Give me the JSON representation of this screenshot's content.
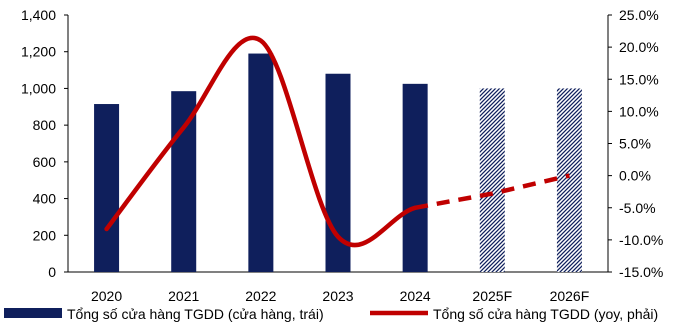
{
  "chart_data": {
    "type": "bar",
    "categories": [
      "2020",
      "2021",
      "2022",
      "2023",
      "2024",
      "2025F",
      "2026F"
    ],
    "series": [
      {
        "name": "Tổng số cửa hàng TGDD (cửa hàng, trái)",
        "type": "bar",
        "axis": "left",
        "values": [
          915,
          985,
          1190,
          1080,
          1025,
          1000,
          1000
        ],
        "forecast_from_index": 5,
        "color": "#0f1f5c"
      },
      {
        "name": "Tổng số cửa hàng TGDD (yoy, phải)",
        "type": "line",
        "axis": "right",
        "values": [
          -8.3,
          7.5,
          21.0,
          -9.5,
          -5.0,
          -2.8,
          0.0
        ],
        "forecast_from_index": 4,
        "color": "#c00000"
      }
    ],
    "left_axis": {
      "ylim": [
        0,
        1400
      ],
      "ticks": [
        0,
        200,
        400,
        600,
        800,
        1000,
        1200,
        1400
      ],
      "tick_labels": [
        "0",
        "200",
        "400",
        "600",
        "800",
        "1,000",
        "1,200",
        "1,400"
      ]
    },
    "right_axis": {
      "ylim": [
        -15,
        25
      ],
      "ticks": [
        -15,
        -10,
        -5,
        0,
        5,
        10,
        15,
        20,
        25
      ],
      "tick_labels": [
        "-15.0%",
        "-10.0%",
        "-5.0%",
        "0.0%",
        "5.0%",
        "10.0%",
        "15.0%",
        "20.0%",
        "25.0%"
      ]
    },
    "legend_position": "bottom",
    "grid": false
  }
}
